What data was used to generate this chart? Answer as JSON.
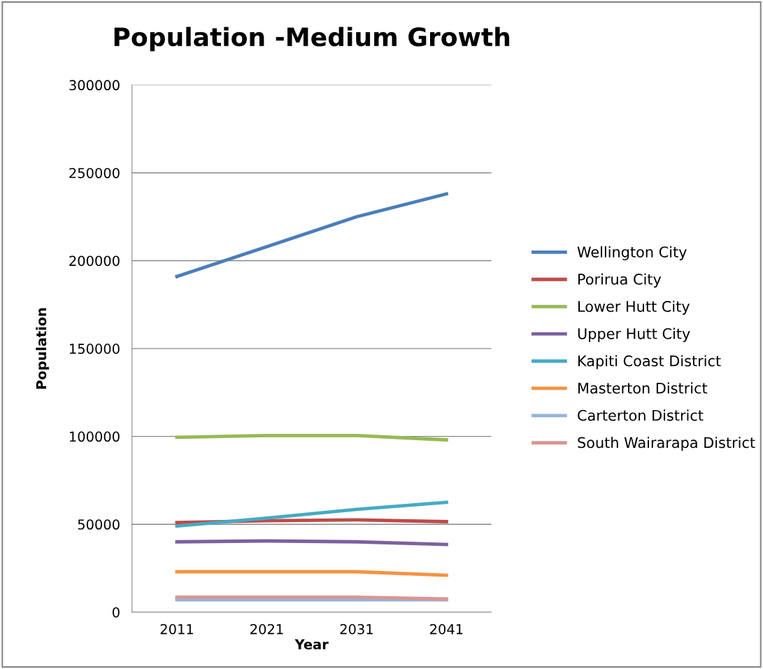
{
  "chart_data": {
    "type": "line",
    "title": "Population -Medium Growth",
    "xlabel": "Year",
    "ylabel": "Population",
    "categories": [
      "2011",
      "2021",
      "2031",
      "2041"
    ],
    "series": [
      {
        "name": "Wellington City",
        "color": "#4a7ebb",
        "values": [
          191000,
          208000,
          225000,
          238000
        ]
      },
      {
        "name": "Porirua City",
        "color": "#be4b48",
        "values": [
          51000,
          52000,
          52500,
          51500
        ]
      },
      {
        "name": "Lower Hutt City",
        "color": "#98b954",
        "values": [
          99500,
          100500,
          100500,
          98000
        ]
      },
      {
        "name": "Upper Hutt City",
        "color": "#7d60a0",
        "values": [
          40000,
          40500,
          40000,
          38500
        ]
      },
      {
        "name": "Kapiti Coast District",
        "color": "#46aac5",
        "values": [
          49000,
          53500,
          58500,
          62500
        ]
      },
      {
        "name": "Masterton District",
        "color": "#f69240",
        "values": [
          23000,
          23000,
          23000,
          21000
        ]
      },
      {
        "name": "Carterton District",
        "color": "#95b3d7",
        "values": [
          7000,
          7000,
          7000,
          7000
        ]
      },
      {
        "name": "South Wairarapa District",
        "color": "#d99694",
        "values": [
          8500,
          8500,
          8500,
          7500
        ]
      }
    ],
    "ylim": [
      0,
      300000
    ],
    "yticks": [
      0,
      50000,
      100000,
      150000,
      200000,
      250000,
      300000
    ],
    "grid": "y",
    "legend": "right",
    "marker": "none",
    "line_style": "solid"
  }
}
